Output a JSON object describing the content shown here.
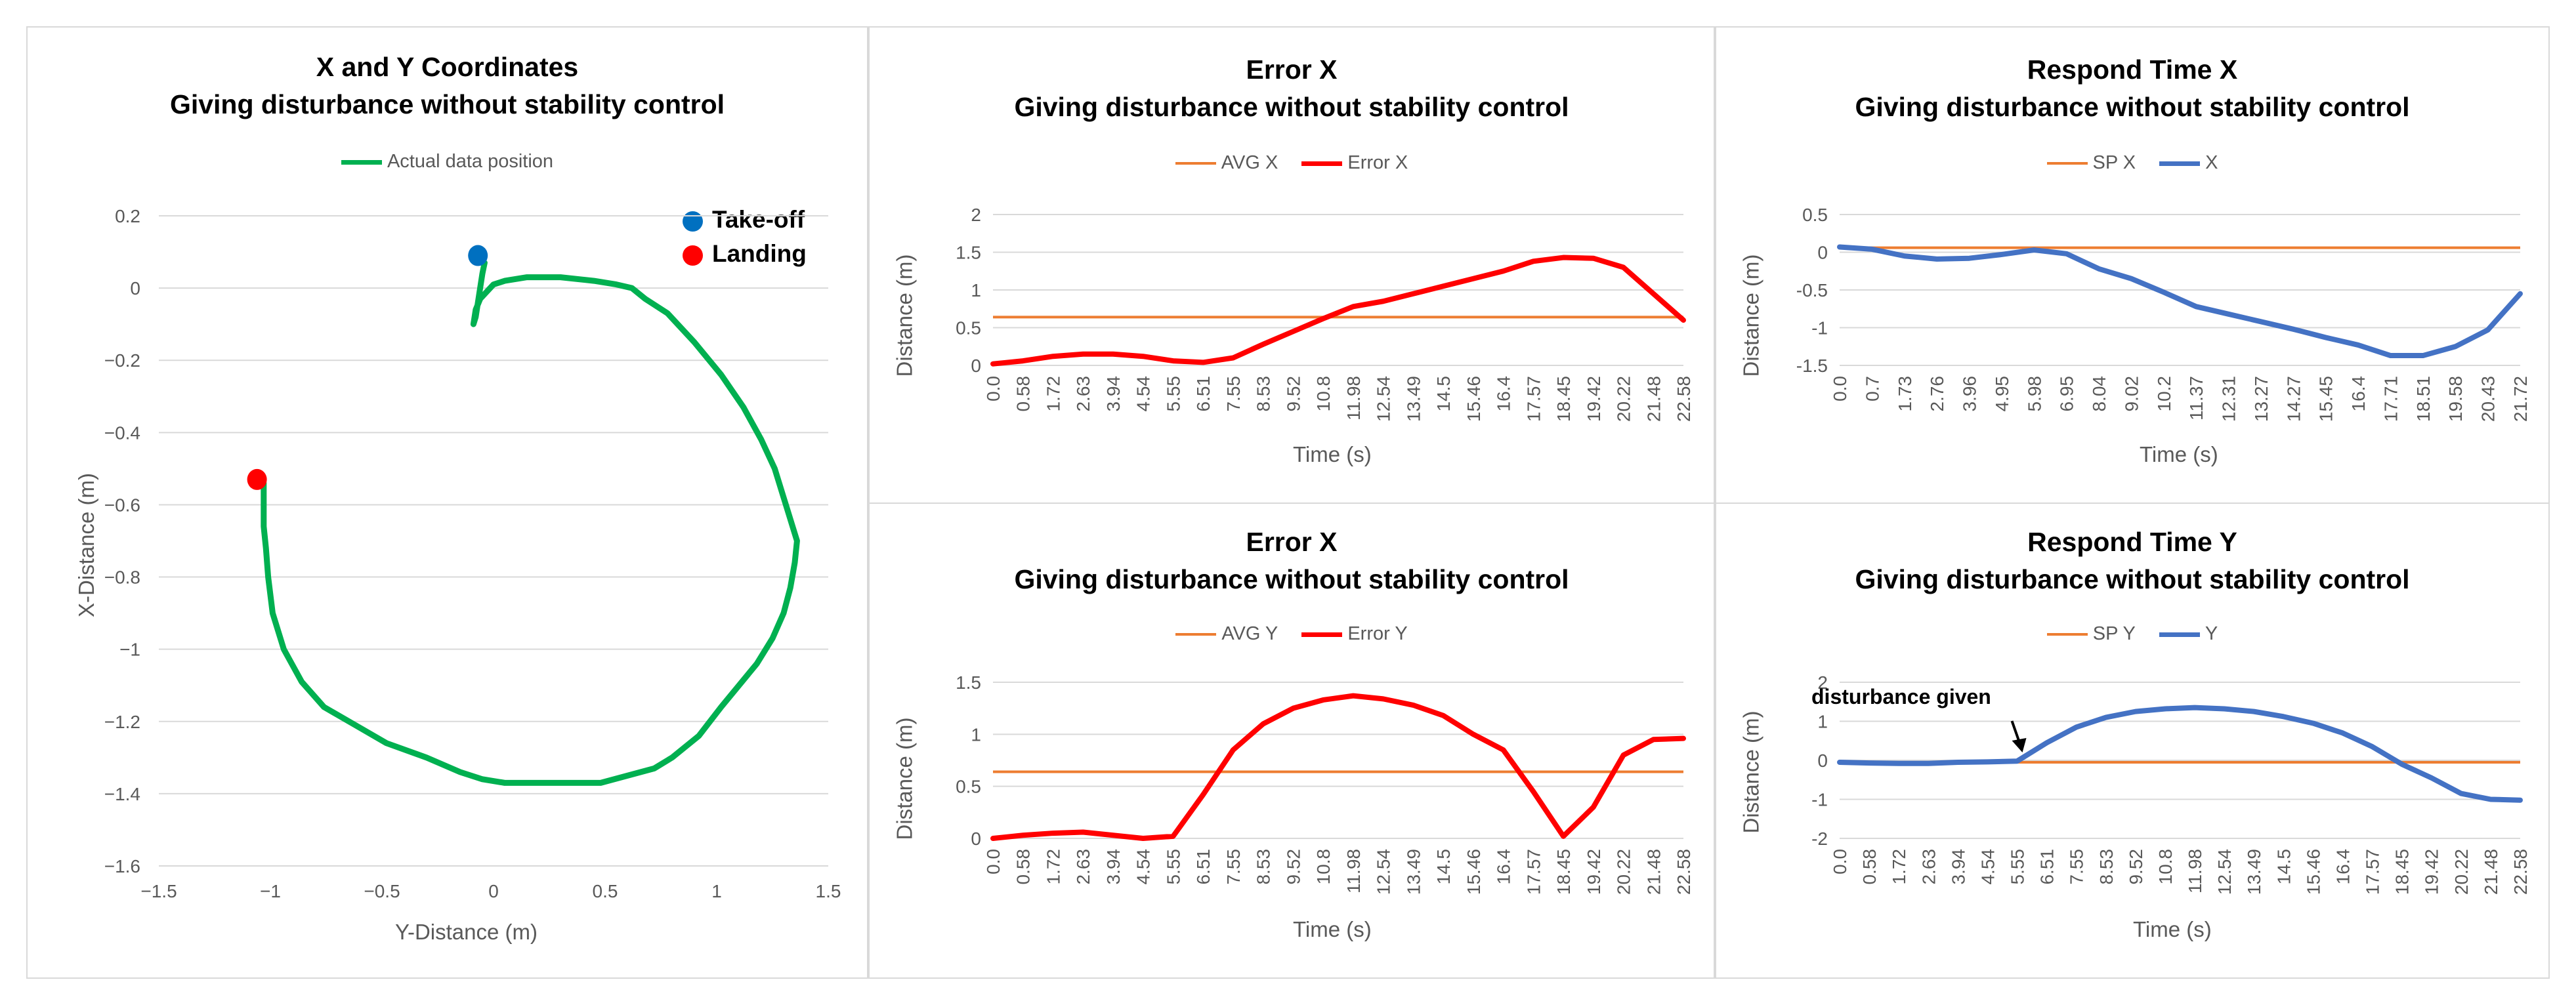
{
  "chart_data": [
    {
      "type": "line",
      "title_line1": "X and Y Coordinates",
      "title_line2": "Giving disturbance without stability control",
      "xlabel": "Y-Distance (m)",
      "ylabel": "X-Distance (m)",
      "xlim": [
        -1.5,
        1.5
      ],
      "ylim": [
        -1.6,
        0.2
      ],
      "x_ticks": [
        "−1.5",
        "−1",
        "−0.5",
        "0",
        "0.5",
        "1",
        "1.5"
      ],
      "y_ticks": [
        "0.2",
        "0",
        "−0.2",
        "−0.4",
        "−0.6",
        "−0.8",
        "−1",
        "−1.2",
        "−1.4",
        "−1.6"
      ],
      "grid": true,
      "legend_position": "top",
      "series": [
        {
          "name": "Actual data position",
          "color": "#00b050",
          "x": [
            -0.04,
            -0.05,
            -0.06,
            -0.07,
            -0.08,
            -0.09,
            -0.08,
            -0.06,
            -0.03,
            0.0,
            0.05,
            0.15,
            0.3,
            0.45,
            0.55,
            0.62,
            0.68,
            0.78,
            0.9,
            1.02,
            1.12,
            1.2,
            1.26,
            1.3,
            1.33,
            1.35,
            1.36,
            1.35,
            1.33,
            1.3,
            1.25,
            1.18,
            1.1,
            1.02,
            0.92,
            0.8,
            0.72,
            0.6,
            0.48,
            0.35,
            0.2,
            0.05,
            -0.05,
            -0.15,
            -0.3,
            -0.48,
            -0.62,
            -0.76,
            -0.86,
            -0.94,
            -0.99,
            -1.01,
            -1.02,
            -1.03,
            -1.03,
            -1.03,
            -1.03,
            -1.04
          ],
          "y": [
            0.07,
            0.04,
            0.0,
            -0.04,
            -0.08,
            -0.1,
            -0.06,
            -0.03,
            -0.01,
            0.01,
            0.02,
            0.03,
            0.03,
            0.02,
            0.01,
            0.0,
            -0.03,
            -0.07,
            -0.15,
            -0.24,
            -0.33,
            -0.42,
            -0.5,
            -0.58,
            -0.64,
            -0.68,
            -0.7,
            -0.76,
            -0.83,
            -0.9,
            -0.97,
            -1.04,
            -1.1,
            -1.16,
            -1.24,
            -1.3,
            -1.33,
            -1.35,
            -1.37,
            -1.37,
            -1.37,
            -1.37,
            -1.36,
            -1.34,
            -1.3,
            -1.26,
            -1.21,
            -1.16,
            -1.09,
            -1.0,
            -0.9,
            -0.8,
            -0.72,
            -0.66,
            -0.6,
            -0.56,
            -0.54,
            -0.53
          ]
        }
      ],
      "markers": [
        {
          "label": "Take-off",
          "color": "#0070c0",
          "x": -0.07,
          "y": 0.09
        },
        {
          "label": "Landing",
          "color": "#ff0000",
          "x": -1.06,
          "y": -0.53
        }
      ]
    },
    {
      "type": "line",
      "title_line1": "Error X",
      "title_line2": "Giving disturbance without stability control",
      "xlabel": "Time (s)",
      "ylabel": "Distance (m)",
      "ylim": [
        0,
        2
      ],
      "y_ticks": [
        "2",
        "1.5",
        "1",
        "0.5",
        "0"
      ],
      "x_ticks": [
        "0.0",
        "0.58",
        "1.72",
        "2.63",
        "3.94",
        "4.54",
        "5.55",
        "6.51",
        "7.55",
        "8.53",
        "9.52",
        "10.8",
        "11.98",
        "12.54",
        "13.49",
        "14.5",
        "15.46",
        "16.4",
        "17.57",
        "18.45",
        "19.42",
        "20.22",
        "21.48",
        "22.58"
      ],
      "grid": true,
      "legend_position": "top",
      "series": [
        {
          "name": "AVG X",
          "color": "#ed7d31",
          "constant": 0.64
        },
        {
          "name": "Error X",
          "color": "#ff0000",
          "x": [
            0.0,
            0.58,
            1.72,
            2.63,
            3.94,
            4.54,
            5.55,
            6.51,
            7.55,
            8.53,
            9.52,
            10.8,
            11.98,
            12.54,
            13.49,
            14.5,
            15.46,
            16.4,
            17.57,
            18.45,
            19.42,
            20.22,
            21.48,
            22.58
          ],
          "y": [
            0.02,
            0.06,
            0.12,
            0.15,
            0.15,
            0.12,
            0.06,
            0.04,
            0.1,
            0.28,
            0.45,
            0.62,
            0.78,
            0.85,
            0.95,
            1.05,
            1.15,
            1.25,
            1.38,
            1.43,
            1.42,
            1.3,
            0.95,
            0.6
          ]
        }
      ]
    },
    {
      "type": "line",
      "title_line1": "Respond Time X",
      "title_line2": "Giving disturbance without stability control",
      "xlabel": "Time (s)",
      "ylabel": "Distance (m)",
      "ylim": [
        -1.5,
        0.5
      ],
      "y_ticks": [
        "0.5",
        "0",
        "-0.5",
        "-1",
        "-1.5"
      ],
      "x_ticks": [
        "0.0",
        "0.7",
        "1.73",
        "2.76",
        "3.96",
        "4.95",
        "5.98",
        "6.95",
        "8.04",
        "9.02",
        "10.2",
        "11.37",
        "12.31",
        "13.27",
        "14.27",
        "15.45",
        "16.4",
        "17.71",
        "18.51",
        "19.58",
        "20.43",
        "21.72"
      ],
      "grid": true,
      "legend_position": "top",
      "series": [
        {
          "name": "SP X",
          "color": "#ed7d31",
          "constant": 0.06
        },
        {
          "name": "X",
          "color": "#4472c4",
          "x": [
            0.0,
            0.7,
            1.73,
            2.76,
            3.96,
            4.95,
            5.98,
            6.95,
            8.04,
            9.02,
            10.2,
            11.37,
            12.31,
            13.27,
            14.27,
            15.45,
            16.4,
            17.71,
            18.51,
            19.58,
            20.43,
            21.72
          ],
          "y": [
            0.07,
            0.04,
            -0.05,
            -0.09,
            -0.08,
            -0.03,
            0.03,
            -0.02,
            -0.22,
            -0.35,
            -0.53,
            -0.72,
            -0.82,
            -0.92,
            -1.02,
            -1.13,
            -1.23,
            -1.37,
            -1.37,
            -1.25,
            -1.03,
            -0.55
          ]
        }
      ]
    },
    {
      "type": "line",
      "title_line1": "Error X",
      "title_line2": "Giving disturbance without stability control",
      "xlabel": "Time (s)",
      "ylabel": "Distance (m)",
      "ylim": [
        0,
        1.5
      ],
      "y_ticks": [
        "1.5",
        "1",
        "0.5",
        "0"
      ],
      "x_ticks": [
        "0.0",
        "0.58",
        "1.72",
        "2.63",
        "3.94",
        "4.54",
        "5.55",
        "6.51",
        "7.55",
        "8.53",
        "9.52",
        "10.8",
        "11.98",
        "12.54",
        "13.49",
        "14.5",
        "15.46",
        "16.4",
        "17.57",
        "18.45",
        "19.42",
        "20.22",
        "21.48",
        "22.58"
      ],
      "grid": true,
      "legend_position": "top",
      "series": [
        {
          "name": "AVG Y",
          "color": "#ed7d31",
          "constant": 0.64
        },
        {
          "name": "Error Y",
          "color": "#ff0000",
          "x": [
            0.0,
            0.58,
            1.72,
            2.63,
            3.94,
            4.54,
            5.55,
            6.51,
            7.55,
            8.53,
            9.52,
            10.8,
            11.98,
            12.54,
            13.49,
            14.5,
            15.46,
            16.4,
            17.57,
            18.45,
            19.42,
            20.22,
            21.48,
            22.58
          ],
          "y": [
            0.0,
            0.03,
            0.05,
            0.06,
            0.03,
            0.0,
            0.02,
            0.42,
            0.85,
            1.1,
            1.25,
            1.33,
            1.37,
            1.34,
            1.28,
            1.18,
            1.0,
            0.85,
            0.45,
            0.02,
            0.3,
            0.8,
            0.95,
            0.96
          ]
        }
      ]
    },
    {
      "type": "line",
      "title_line1": "Respond Time Y",
      "title_line2": "Giving disturbance without stability control",
      "xlabel": "Time (s)",
      "ylabel": "Distance (m)",
      "ylim": [
        -2,
        2
      ],
      "y_ticks": [
        "2",
        "1",
        "0",
        "-1",
        "-2"
      ],
      "x_ticks": [
        "0.0",
        "0.58",
        "1.72",
        "2.63",
        "3.94",
        "4.54",
        "5.55",
        "6.51",
        "7.55",
        "8.53",
        "9.52",
        "10.8",
        "11.98",
        "12.54",
        "13.49",
        "14.5",
        "15.46",
        "16.4",
        "17.57",
        "18.45",
        "19.42",
        "20.22",
        "21.48",
        "22.58"
      ],
      "grid": true,
      "legend_position": "top",
      "annotation": "disturbance given",
      "series": [
        {
          "name": "SP Y",
          "color": "#ed7d31",
          "constant": -0.05
        },
        {
          "name": "Y",
          "color": "#4472c4",
          "x": [
            0.0,
            0.58,
            1.72,
            2.63,
            3.94,
            4.54,
            5.55,
            6.51,
            7.55,
            8.53,
            9.52,
            10.8,
            11.98,
            12.54,
            13.49,
            14.5,
            15.46,
            16.4,
            17.57,
            18.45,
            19.42,
            20.22,
            21.48,
            22.58
          ],
          "y": [
            -0.05,
            -0.07,
            -0.08,
            -0.08,
            -0.05,
            -0.04,
            -0.02,
            0.45,
            0.85,
            1.1,
            1.25,
            1.32,
            1.35,
            1.32,
            1.25,
            1.12,
            0.95,
            0.7,
            0.35,
            -0.1,
            -0.45,
            -0.85,
            -1.0,
            -1.02
          ]
        }
      ]
    }
  ]
}
